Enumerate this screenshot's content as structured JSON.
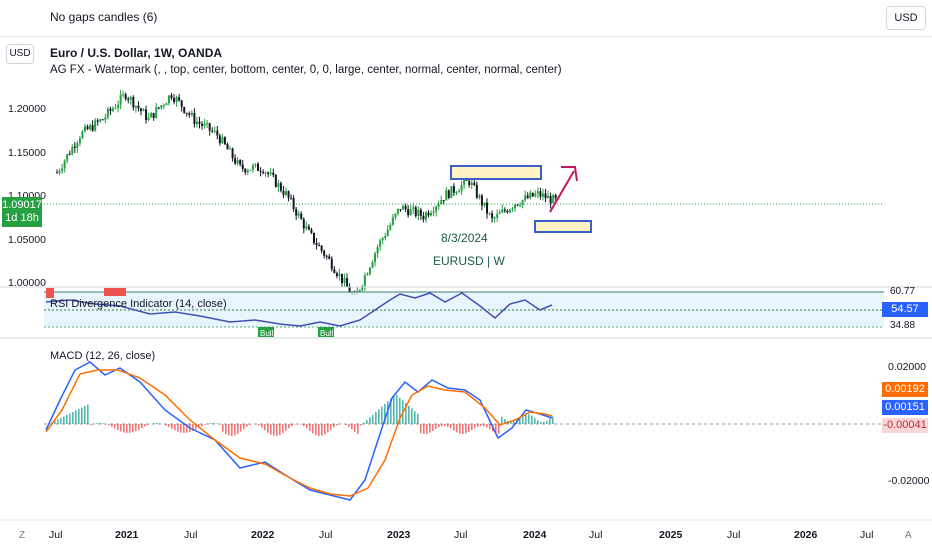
{
  "header": {
    "title": "No gaps candles (6)",
    "currency_button": "USD"
  },
  "price_pane": {
    "currency_button": "USD",
    "symbol_title": "Euro / U.S. Dollar, 1W, OANDA",
    "indicator_line": "AG FX - Watermark (, , top, center, bottom, center, 0, 0, large, center, normal, center, normal, center)",
    "current_price": "1.09017",
    "countdown": "1d 18h",
    "watermark_date": "8/3/2024",
    "watermark_symbol": "EURUSD | W",
    "y_ticks": [
      "1.20000",
      "1.15000",
      "1.10000",
      "1.05000",
      "1.00000"
    ]
  },
  "rsi_pane": {
    "label": "RSI Divergence Indicator (14, close)",
    "value_tag": "54.57",
    "levels": [
      "60.77",
      "34.88"
    ],
    "signal_labels": [
      "Bull",
      "Bull"
    ],
    "bear_label": "Bear"
  },
  "macd_pane": {
    "label": "MACD (12, 26, close)",
    "y_ticks": [
      "0.02000",
      "-0.02000"
    ],
    "tag_signal": "0.00192",
    "tag_macd": "0.00151",
    "tag_hist": "-0.00041"
  },
  "time_axis": {
    "labels": [
      "Jul",
      "2021",
      "Jul",
      "2022",
      "Jul",
      "2023",
      "Jul",
      "2024",
      "Jul",
      "2025",
      "Jul",
      "2026",
      "Jul"
    ],
    "left_button": "Z",
    "right_button": "A"
  },
  "colors": {
    "up": "#26a69a",
    "down": "#ef5350",
    "green_candle": "#26a043",
    "dark_candle": "#131722",
    "macd_line": "#2962ff",
    "signal_line": "#ff6d00",
    "rsi_line": "#3f51b5",
    "box_fill": "#fff3c4",
    "box_stroke": "#3a5fc8",
    "arrow": "#c2185b"
  },
  "chart_data": {
    "type": "candlestick",
    "title": "Euro / U.S. Dollar, 1W, OANDA",
    "x_labels": [
      "Jul",
      "2021",
      "Jul",
      "2022",
      "Jul",
      "2023",
      "Jul",
      "2024",
      "Jul",
      "2025",
      "Jul",
      "2026",
      "Jul"
    ],
    "price_close_path": [
      [
        "2020-07",
        1.125
      ],
      [
        "2020-09",
        1.168
      ],
      [
        "2020-11",
        1.186
      ],
      [
        "2021-01",
        1.215
      ],
      [
        "2021-03",
        1.186
      ],
      [
        "2021-05",
        1.215
      ],
      [
        "2021-07",
        1.185
      ],
      [
        "2021-09",
        1.168
      ],
      [
        "2021-11",
        1.13
      ],
      [
        "2022-01",
        1.13
      ],
      [
        "2022-03",
        1.1
      ],
      [
        "2022-05",
        1.055
      ],
      [
        "2022-07",
        1.02
      ],
      [
        "2022-09",
        0.98
      ],
      [
        "2022-11",
        1.04
      ],
      [
        "2023-01",
        1.085
      ],
      [
        "2023-03",
        1.075
      ],
      [
        "2023-05",
        1.1
      ],
      [
        "2023-07",
        1.115
      ],
      [
        "2023-09",
        1.07
      ],
      [
        "2023-11",
        1.09
      ],
      [
        "2024-01",
        1.1
      ],
      [
        "2024-03",
        1.09
      ]
    ],
    "current_price": 1.09017,
    "macd_last": {
      "signal": 0.00192,
      "macd": 0.00151,
      "histogram": -0.00041
    },
    "rsi_last": 54.57
  }
}
